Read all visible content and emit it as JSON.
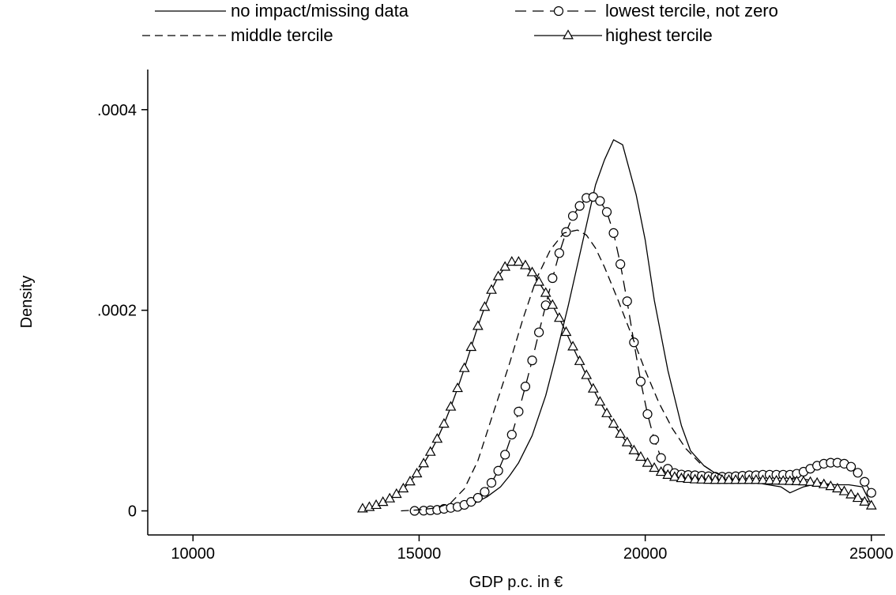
{
  "chart_data": {
    "type": "line",
    "title": "",
    "xlabel": "GDP p.c. in €",
    "ylabel": "Density",
    "xlim": [
      9000,
      25300
    ],
    "ylim": [
      -2.4e-05,
      0.00044
    ],
    "x_ticks": [
      10000,
      15000,
      20000,
      25000
    ],
    "x_tick_labels": [
      "10000",
      "15000",
      "20000",
      "25000"
    ],
    "y_ticks": [
      0,
      0.0002,
      0.0004
    ],
    "y_tick_labels": [
      "0",
      ".0002",
      ".0004"
    ],
    "grid": false,
    "legend_position": "top",
    "series": [
      {
        "name": "no impact/missing data",
        "style": "solid",
        "marker": "none",
        "color": "#000000",
        "x": [
          15800,
          16000,
          16200,
          16500,
          16800,
          17000,
          17200,
          17500,
          17800,
          18000,
          18300,
          18600,
          18900,
          19100,
          19300,
          19500,
          19800,
          20000,
          20200,
          20500,
          20800,
          21000,
          21300,
          21600,
          21800,
          22000,
          22300,
          22600,
          23000,
          23200,
          23500,
          23800,
          24000,
          24200,
          24500,
          24800,
          25000
        ],
        "y": [
          2e-06,
          4e-06,
          7e-06,
          1.4e-05,
          2.4e-05,
          3.5e-05,
          4.8e-05,
          7.5e-05,
          0.000115,
          0.00015,
          0.000205,
          0.000265,
          0.000325,
          0.00035,
          0.00037,
          0.000365,
          0.000315,
          0.00027,
          0.00021,
          0.00014,
          8.5e-05,
          6e-05,
          4.5e-05,
          3.6e-05,
          3.2e-05,
          3.1e-05,
          3e-05,
          2.7e-05,
          2.4e-05,
          1.8e-05,
          2.4e-05,
          2.7e-05,
          2.7e-05,
          2.6e-05,
          2.6e-05,
          2.4e-05,
          6e-06
        ]
      },
      {
        "name": "lowest tercile, not zero",
        "style": "dashed",
        "marker": "circle",
        "color": "#000000",
        "x": [
          14900,
          15100,
          15250,
          15400,
          15550,
          15700,
          15850,
          16000,
          16150,
          16300,
          16450,
          16600,
          16750,
          16900,
          17050,
          17200,
          17350,
          17500,
          17650,
          17800,
          17950,
          18100,
          18250,
          18400,
          18550,
          18700,
          18850,
          19000,
          19150,
          19300,
          19450,
          19600,
          19750,
          19900,
          20050,
          20200,
          20350,
          20500,
          20650,
          20800,
          20950,
          21100,
          21250,
          21400,
          21550,
          21700,
          21850,
          22000,
          22150,
          22300,
          22450,
          22600,
          22750,
          22900,
          23050,
          23200,
          23350,
          23500,
          23650,
          23800,
          23950,
          24100,
          24250,
          24400,
          24550,
          24700,
          24850,
          25000
        ],
        "y": [
          0.0,
          2e-07,
          5e-07,
          1e-06,
          2e-06,
          3e-06,
          4e-06,
          6e-06,
          9e-06,
          1.3e-05,
          1.9e-05,
          2.8e-05,
          4e-05,
          5.6e-05,
          7.6e-05,
          9.9e-05,
          0.000124,
          0.00015,
          0.000178,
          0.000205,
          0.000232,
          0.000257,
          0.000278,
          0.000294,
          0.000304,
          0.000312,
          0.000313,
          0.000309,
          0.000298,
          0.000277,
          0.000246,
          0.000209,
          0.000168,
          0.000129,
          9.65e-05,
          7.1e-05,
          5.27e-05,
          4.2e-05,
          3.77e-05,
          3.62e-05,
          3.58e-05,
          3.55e-05,
          3.5e-05,
          3.45e-05,
          3.4e-05,
          3.4e-05,
          3.4e-05,
          3.45e-05,
          3.5e-05,
          3.55e-05,
          3.55e-05,
          3.6e-05,
          3.6e-05,
          3.6e-05,
          3.6e-05,
          3.6e-05,
          3.7e-05,
          3.9e-05,
          4.2e-05,
          4.5e-05,
          4.7e-05,
          4.8e-05,
          4.8e-05,
          4.7e-05,
          4.4e-05,
          3.8e-05,
          2.9e-05,
          1.8e-05
        ]
      },
      {
        "name": "middle tercile",
        "style": "dashed",
        "marker": "none",
        "color": "#000000",
        "x": [
          14600,
          15000,
          15400,
          15700,
          16000,
          16300,
          16600,
          17000,
          17300,
          17600,
          17900,
          18200,
          18500,
          18700,
          18900,
          19100,
          19400,
          19700,
          20000,
          20300,
          20600,
          20900,
          21200,
          21500,
          21800,
          22100,
          22400,
          22700,
          23000,
          23300,
          23600,
          23900,
          24200,
          24500,
          24800,
          25000
        ],
        "y": [
          0.0,
          1e-06,
          3e-06,
          8e-06,
          2.2e-05,
          5e-05,
          9.2e-05,
          0.000147,
          0.000192,
          0.000232,
          0.00026,
          0.000277,
          0.00028,
          0.000275,
          0.000262,
          0.000243,
          0.00021,
          0.000175,
          0.00014,
          0.000108,
          8.2e-05,
          6.2e-05,
          4.8e-05,
          3.9e-05,
          3.3e-05,
          3e-05,
          2.9e-05,
          2.9e-05,
          3e-05,
          3.2e-05,
          3.1e-05,
          2.8e-05,
          2.4e-05,
          1.8e-05,
          1.2e-05,
          8e-06
        ]
      },
      {
        "name": "highest tercile",
        "style": "solid",
        "marker": "triangle",
        "color": "#000000",
        "x": [
          13750,
          13900,
          14050,
          14200,
          14350,
          14500,
          14650,
          14800,
          14950,
          15100,
          15250,
          15400,
          15550,
          15700,
          15850,
          16000,
          16150,
          16300,
          16450,
          16600,
          16750,
          16900,
          17050,
          17200,
          17350,
          17500,
          17650,
          17800,
          17950,
          18100,
          18250,
          18400,
          18550,
          18700,
          18850,
          19000,
          19150,
          19300,
          19450,
          19600,
          19750,
          19900,
          20050,
          20200,
          20350,
          20500,
          20650,
          20800,
          20950,
          21100,
          21250,
          21400,
          21550,
          21700,
          21850,
          22000,
          22150,
          22300,
          22450,
          22600,
          22750,
          22900,
          23050,
          23200,
          23350,
          23500,
          23650,
          23800,
          23950,
          24100,
          24250,
          24400,
          24550,
          24700,
          24850,
          25000
        ],
        "y": [
          2e-06,
          3.5e-06,
          5.5e-06,
          8.5e-06,
          1.2e-05,
          1.65e-05,
          2.2e-05,
          2.9e-05,
          3.7e-05,
          4.7e-05,
          5.85e-05,
          7.15e-05,
          8.65e-05,
          0.0001035,
          0.000122,
          0.000142,
          0.000163,
          0.000184,
          0.000203,
          0.00022,
          0.0002335,
          0.000243,
          0.000248,
          0.000248,
          0.0002445,
          0.0002375,
          0.000228,
          0.000217,
          0.000205,
          0.000192,
          0.000178,
          0.0001635,
          0.000149,
          0.000135,
          0.0001215,
          0.0001085,
          9.7e-05,
          8.65e-05,
          7.65e-05,
          6.8e-05,
          6e-05,
          5.35e-05,
          4.75e-05,
          4.25e-05,
          3.85e-05,
          3.55e-05,
          3.35e-05,
          3.22e-05,
          3.15e-05,
          3.1e-05,
          3.08e-05,
          3.06e-05,
          3.05e-05,
          3.05e-05,
          3.05e-05,
          3.05e-05,
          3.05e-05,
          3.05e-05,
          3.05e-05,
          3.03e-05,
          3e-05,
          2.98e-05,
          2.96e-05,
          2.94e-05,
          2.92e-05,
          2.9e-05,
          2.85e-05,
          2.76e-05,
          2.62e-05,
          2.43e-05,
          2.2e-05,
          1.92e-05,
          1.6e-05,
          1.25e-05,
          8.8e-06,
          5e-06
        ]
      }
    ]
  }
}
